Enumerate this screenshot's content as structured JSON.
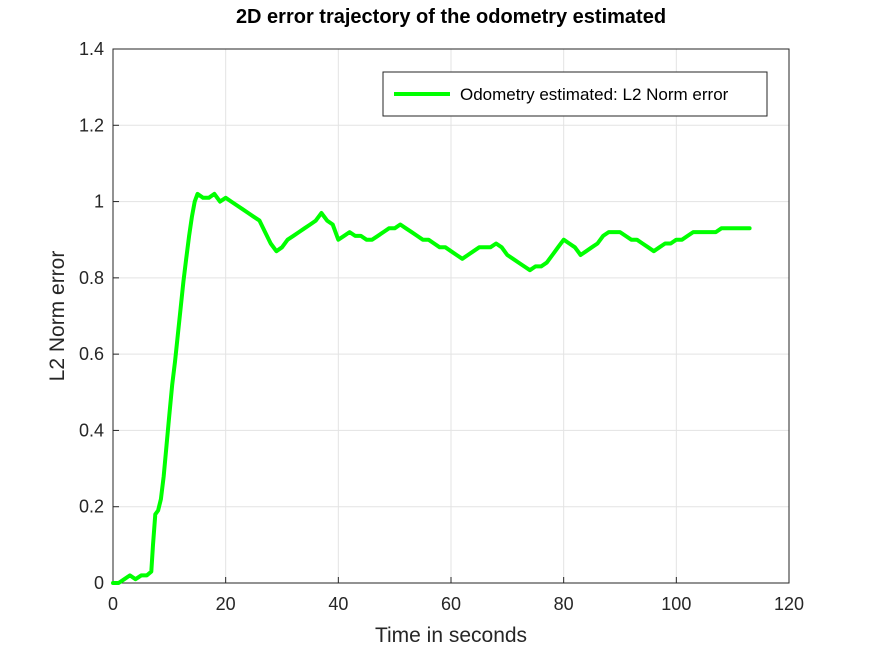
{
  "chart_data": {
    "type": "line",
    "title": "2D error trajectory of the odometry estimated",
    "xlabel": "Time in seconds",
    "ylabel": "L2 Norm error",
    "xlim": [
      0,
      120
    ],
    "ylim": [
      0,
      1.4
    ],
    "xticks": [
      "0",
      "20",
      "40",
      "60",
      "80",
      "100",
      "120"
    ],
    "yticks": [
      "0",
      "0.2",
      "0.4",
      "0.6",
      "0.8",
      "1",
      "1.2",
      "1.4"
    ],
    "grid": true,
    "legend_position": "top-right",
    "series": [
      {
        "name": "Odometry estimated: L2 Norm error",
        "color": "#00ff00",
        "x": [
          0,
          1,
          2,
          3,
          4,
          5,
          6,
          6.8,
          7.1,
          7.5,
          8.0,
          8.5,
          9.0,
          9.5,
          10.0,
          10.5,
          11.0,
          11.5,
          12.0,
          12.5,
          13.0,
          13.5,
          14.0,
          14.5,
          15.0,
          16,
          17,
          18,
          19,
          20,
          21,
          22,
          23,
          24,
          25,
          26,
          27,
          28,
          29,
          30,
          31,
          32,
          33,
          34,
          35,
          36,
          37,
          38,
          39,
          40,
          41,
          42,
          43,
          44,
          45,
          46,
          47,
          48,
          49,
          50,
          51,
          52,
          53,
          54,
          55,
          56,
          57,
          58,
          59,
          60,
          61,
          62,
          63,
          64,
          65,
          66,
          67,
          68,
          69,
          70,
          71,
          72,
          73,
          74,
          75,
          76,
          77,
          78,
          79,
          80,
          81,
          82,
          83,
          84,
          85,
          86,
          87,
          88,
          89,
          90,
          91,
          92,
          93,
          94,
          95,
          96,
          97,
          98,
          99,
          100,
          101,
          102,
          103,
          104,
          105,
          106,
          107,
          108,
          109,
          110,
          111,
          112,
          113
        ],
        "y": [
          0.0,
          0.0,
          0.01,
          0.02,
          0.01,
          0.02,
          0.02,
          0.03,
          0.1,
          0.18,
          0.19,
          0.22,
          0.28,
          0.36,
          0.44,
          0.52,
          0.58,
          0.65,
          0.72,
          0.79,
          0.85,
          0.91,
          0.96,
          1.0,
          1.02,
          1.01,
          1.01,
          1.02,
          1.0,
          1.01,
          1.0,
          0.99,
          0.98,
          0.97,
          0.96,
          0.95,
          0.92,
          0.89,
          0.87,
          0.88,
          0.9,
          0.91,
          0.92,
          0.93,
          0.94,
          0.95,
          0.97,
          0.95,
          0.94,
          0.9,
          0.91,
          0.92,
          0.91,
          0.91,
          0.9,
          0.9,
          0.91,
          0.92,
          0.93,
          0.93,
          0.94,
          0.93,
          0.92,
          0.91,
          0.9,
          0.9,
          0.89,
          0.88,
          0.88,
          0.87,
          0.86,
          0.85,
          0.86,
          0.87,
          0.88,
          0.88,
          0.88,
          0.89,
          0.88,
          0.86,
          0.85,
          0.84,
          0.83,
          0.82,
          0.83,
          0.83,
          0.84,
          0.86,
          0.88,
          0.9,
          0.89,
          0.88,
          0.86,
          0.87,
          0.88,
          0.89,
          0.91,
          0.92,
          0.92,
          0.92,
          0.91,
          0.9,
          0.9,
          0.89,
          0.88,
          0.87,
          0.88,
          0.89,
          0.89,
          0.9,
          0.9,
          0.91,
          0.92,
          0.92,
          0.92,
          0.92,
          0.92,
          0.93,
          0.93,
          0.93,
          0.93,
          0.93,
          0.93
        ]
      }
    ]
  }
}
